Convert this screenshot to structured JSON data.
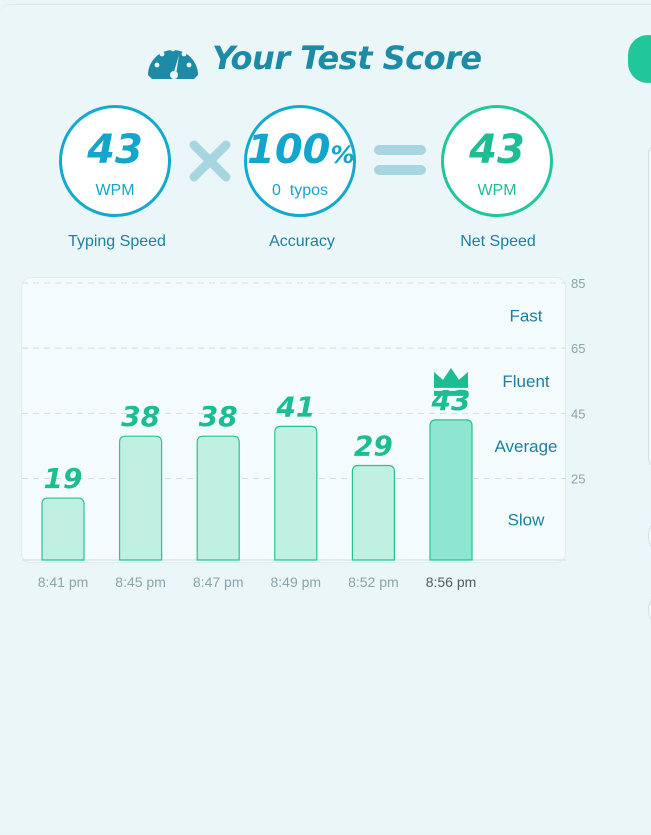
{
  "title": "Your Test Score",
  "typing_speed": {
    "value": "43",
    "unit": "WPM",
    "caption": "Typing Speed"
  },
  "accuracy": {
    "value": "100",
    "percent": "%",
    "typos": "0  typos",
    "caption": "Accuracy"
  },
  "net_speed": {
    "value": "43",
    "unit": "WPM",
    "caption": "Net Speed"
  },
  "colors": {
    "blue": "#14a9cf",
    "green": "#21c79b",
    "title": "#1e8ba6",
    "bar": "#bff0e2",
    "bar_best": "#8ee6d1"
  },
  "chart_data": {
    "type": "bar",
    "categories": [
      "8:41 pm",
      "8:45 pm",
      "8:47 pm",
      "8:49 pm",
      "8:52 pm",
      "8:56 pm"
    ],
    "values": [
      19,
      38,
      38,
      41,
      29,
      43
    ],
    "highlight_index": 5,
    "highlight_icon": "crown-icon",
    "ylim": [
      0,
      85
    ],
    "y_ticks": [
      25,
      45,
      65,
      85
    ],
    "bands": [
      {
        "label": "Fast",
        "center": 75
      },
      {
        "label": "Fluent",
        "center": 55
      },
      {
        "label": "Average",
        "center": 35
      },
      {
        "label": "Slow",
        "center": 12.5
      }
    ],
    "grid": "dashed-horizontal"
  }
}
